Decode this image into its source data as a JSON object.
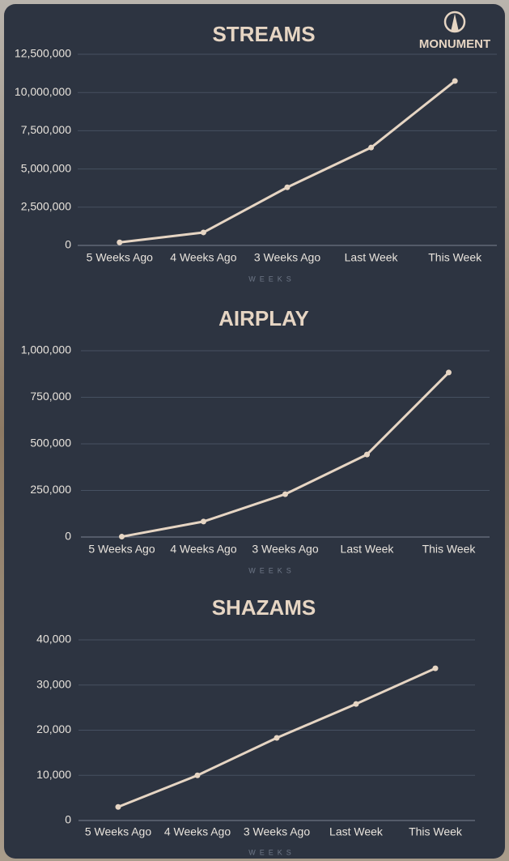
{
  "logo": "MONUMENT",
  "chart_data": [
    {
      "type": "line",
      "title": "STREAMS",
      "xlabel": "WEEKS",
      "categories": [
        "5 Weeks Ago",
        "4 Weeks Ago",
        "3 Weeks Ago",
        "Last Week",
        "This Week"
      ],
      "values": [
        200000,
        850000,
        3800000,
        6400000,
        10750000
      ],
      "color": "#e6d5c3",
      "ylim": [
        0,
        12500000
      ],
      "yticks": [
        0,
        {
          "value": 2500000,
          "label": "2,500,000"
        },
        {
          "value": 5000000,
          "label": "5,000,000"
        },
        {
          "value": 7500000,
          "label": "7,500,000"
        },
        {
          "value": 10000000,
          "label": "10,000,000"
        },
        {
          "value": 12500000,
          "label": "12,500,000"
        }
      ],
      "grid": true
    },
    {
      "type": "line",
      "title": "AIRPLAY",
      "xlabel": "WEEKS",
      "categories": [
        "5 Weeks Ago",
        "4 Weeks Ago",
        "3 Weeks Ago",
        "Last Week",
        "This Week"
      ],
      "values": [
        2000,
        83000,
        230000,
        443000,
        883000
      ],
      "color": "#e6d5c3",
      "ylim": [
        0,
        1000000
      ],
      "yticks": [
        0,
        {
          "value": 250000,
          "label": "250,000"
        },
        {
          "value": 500000,
          "label": "500,000"
        },
        {
          "value": 750000,
          "label": "750,000"
        },
        {
          "value": 1000000,
          "label": "1,000,000"
        }
      ],
      "grid": true
    },
    {
      "type": "line",
      "title": "SHAZAMS",
      "xlabel": "WEEKS",
      "categories": [
        "5 Weeks Ago",
        "4 Weeks Ago",
        "3 Weeks Ago",
        "Last Week",
        "This Week"
      ],
      "values": [
        3000,
        10000,
        18300,
        25800,
        33700
      ],
      "color": "#e6d5c3",
      "ylim": [
        0,
        40000
      ],
      "yticks": [
        0,
        {
          "value": 10000,
          "label": "10,000"
        },
        {
          "value": 20000,
          "label": "20,000"
        },
        {
          "value": 30000,
          "label": "30,000"
        },
        {
          "value": 40000,
          "label": "40,000"
        }
      ],
      "grid": true
    }
  ]
}
